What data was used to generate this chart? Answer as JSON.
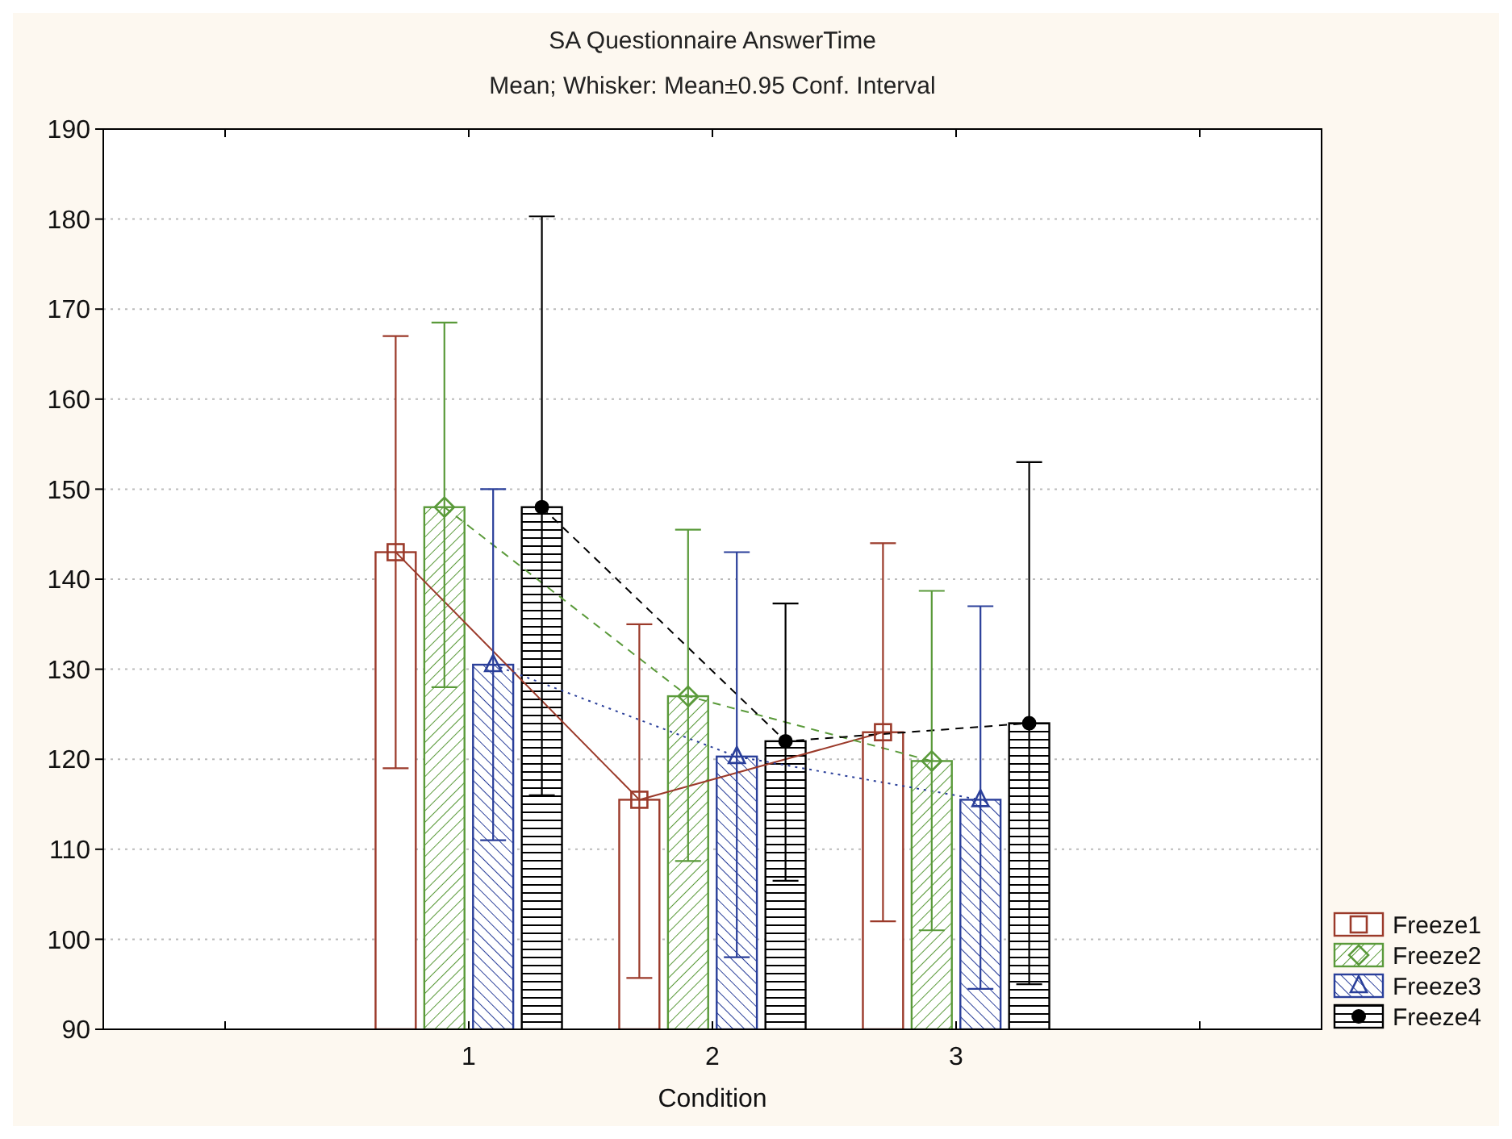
{
  "chart_data": {
    "type": "bar",
    "title": "SA Questionnaire AnswerTime",
    "subtitle": "Mean; Whisker: Mean±0.95 Conf. Interval",
    "xlabel": "Condition",
    "x": [
      1,
      2,
      3
    ],
    "xlim": [
      -0.5,
      4.5
    ],
    "xticks": [
      {
        "value": 0,
        "label": null
      },
      1,
      2,
      3,
      {
        "value": 4,
        "label": null
      }
    ],
    "ylim": [
      90,
      190
    ],
    "yticks": [
      90,
      100,
      110,
      120,
      130,
      140,
      150,
      160,
      170,
      180,
      190
    ],
    "grid": "y",
    "legend": "bottom right",
    "series": [
      {
        "name": "Freeze1",
        "color": "#9b3a2a",
        "values": [
          143,
          115.5,
          123
        ],
        "errors": [
          [
            119,
            167
          ],
          [
            95.7,
            135
          ],
          [
            102,
            144
          ]
        ]
      },
      {
        "name": "Freeze2",
        "color": "#5a9a3a",
        "values": [
          148,
          127,
          119.8
        ],
        "errors": [
          [
            128,
            168.5
          ],
          [
            108.7,
            145.5
          ],
          [
            101,
            138.7
          ]
        ]
      },
      {
        "name": "Freeze3",
        "color": "#2a3f9a",
        "values": [
          130.5,
          120.3,
          115.5
        ],
        "errors": [
          [
            111,
            150
          ],
          [
            98,
            143
          ],
          [
            94.5,
            137
          ]
        ]
      },
      {
        "name": "Freeze4",
        "color": "#000000",
        "values": [
          148,
          122,
          124
        ],
        "errors": [
          [
            116,
            180.3
          ],
          [
            106.5,
            137.3
          ],
          [
            95,
            153
          ]
        ]
      },
      {
        "type": "line",
        "color": "#9b3a2a",
        "x": [
          0.7,
          1.7,
          2.7
        ],
        "values": [
          143,
          115.5,
          123
        ],
        "marker": "square",
        "line_style": "solid"
      },
      {
        "type": "line",
        "color": "#5a9a3a",
        "x": [
          0.9,
          1.9,
          2.9
        ],
        "values": [
          148,
          127,
          119.8
        ],
        "marker": "diamond",
        "line_style": "dashed"
      },
      {
        "type": "line",
        "color": "#2a3f9a",
        "x": [
          1.1,
          2.1,
          3.1
        ],
        "values": [
          130.5,
          120.3,
          115.5
        ],
        "marker": "triangle",
        "line_style": "dotted"
      },
      {
        "type": "line",
        "color": "#000000",
        "x": [
          1.3,
          2.3,
          3.3
        ],
        "values": [
          148,
          122,
          124
        ],
        "marker": "circle",
        "line_style": "dashed"
      }
    ]
  }
}
